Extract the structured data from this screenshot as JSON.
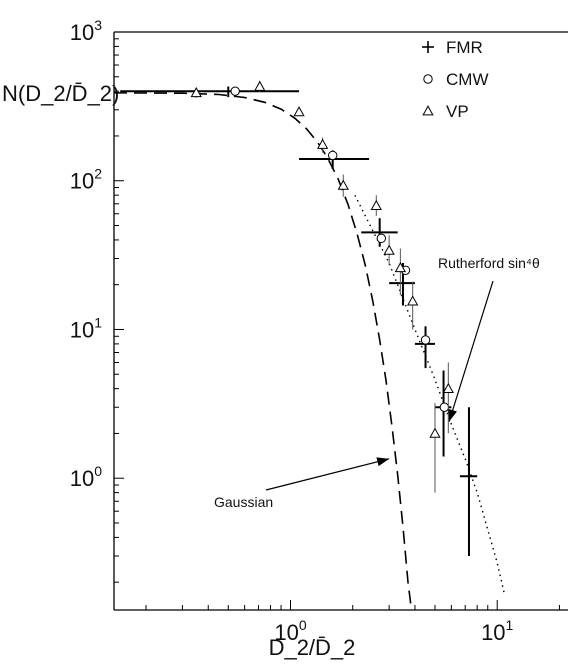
{
  "chart_data": {
    "type": "scatter",
    "title": "",
    "xlabel": "D_2/D̄_2",
    "ylabel": "N(D_2/D̄_2)",
    "xscale": "log",
    "yscale": "log",
    "xlim": [
      0.14,
      22
    ],
    "ylim": [
      0.13,
      1000
    ],
    "x_ticks": [
      {
        "value": 1,
        "base": "10",
        "exp": "0"
      },
      {
        "value": 10,
        "base": "10",
        "exp": "1"
      }
    ],
    "y_ticks": [
      {
        "value": 1,
        "base": "10",
        "exp": "0"
      },
      {
        "value": 10,
        "base": "10",
        "exp": "1"
      },
      {
        "value": 100,
        "base": "10",
        "exp": "2"
      },
      {
        "value": 1000,
        "base": "10",
        "exp": "3"
      }
    ],
    "legend": {
      "position": "top-right",
      "entries": [
        {
          "label": "FMR",
          "marker": "plus"
        },
        {
          "label": "CMW",
          "marker": "circle"
        },
        {
          "label": "VP",
          "marker": "triangle"
        }
      ]
    },
    "series": [
      {
        "name": "FMR",
        "marker": "plus",
        "points": [
          {
            "x": 0.5,
            "y": 400,
            "xerr": [
              0.15,
              1.1
            ],
            "yerr": [
              365,
              430
            ]
          },
          {
            "x": 1.6,
            "y": 140,
            "xerr": [
              1.1,
              2.4
            ],
            "yerr": [
              120,
              160
            ]
          },
          {
            "x": 2.7,
            "y": 45,
            "xerr": [
              2.2,
              3.3
            ],
            "yerr": [
              36,
              56
            ]
          },
          {
            "x": 3.5,
            "y": 20.5,
            "xerr": [
              3.0,
              4.0
            ],
            "yerr": [
              14.5,
              28
            ]
          },
          {
            "x": 4.5,
            "y": 8.0,
            "xerr": [
              4.0,
              5.0
            ],
            "yerr": [
              5.5,
              10.5
            ]
          },
          {
            "x": 5.5,
            "y": 3.0,
            "xerr": [
              5.0,
              6.0
            ],
            "yerr": [
              1.4,
              5.3
            ]
          },
          {
            "x": 7.3,
            "y": 1.03,
            "xerr": [
              6.6,
              8.0
            ],
            "yerr": [
              0.3,
              3.0
            ]
          }
        ]
      },
      {
        "name": "CMW",
        "marker": "circle",
        "points": [
          {
            "x": 0.54,
            "y": 400
          },
          {
            "x": 1.6,
            "y": 148
          },
          {
            "x": 2.75,
            "y": 41
          },
          {
            "x": 3.6,
            "y": 25
          },
          {
            "x": 4.5,
            "y": 8.5
          },
          {
            "x": 5.55,
            "y": 3.0
          }
        ]
      },
      {
        "name": "VP",
        "marker": "triangle",
        "points": [
          {
            "x": 0.35,
            "y": 390,
            "yerr": [
              360,
              420
            ]
          },
          {
            "x": 0.71,
            "y": 430,
            "yerr": [
              395,
              470
            ]
          },
          {
            "x": 1.1,
            "y": 290,
            "yerr": [
              275,
              305
            ]
          },
          {
            "x": 1.43,
            "y": 175,
            "yerr": [
              155,
              195
            ]
          },
          {
            "x": 1.8,
            "y": 93,
            "yerr": [
              78,
              110
            ]
          },
          {
            "x": 2.6,
            "y": 68,
            "yerr": [
              58,
              80
            ]
          },
          {
            "x": 3.0,
            "y": 34,
            "yerr": [
              27,
              43
            ]
          },
          {
            "x": 3.4,
            "y": 26,
            "yerr": [
              17,
              35
            ]
          },
          {
            "x": 3.9,
            "y": 15.5,
            "yerr": [
              10,
              21
            ]
          },
          {
            "x": 5.0,
            "y": 2.0,
            "yerr": [
              0.8,
              3.2
            ]
          },
          {
            "x": 5.8,
            "y": 4.0,
            "yerr": [
              2.0,
              6.0
            ]
          }
        ]
      }
    ],
    "curves": [
      {
        "name": "Gaussian",
        "style": "dashed",
        "points": [
          [
            0.14,
            390
          ],
          [
            0.3,
            388
          ],
          [
            0.45,
            380
          ],
          [
            0.6,
            363
          ],
          [
            0.75,
            337
          ],
          [
            0.9,
            303
          ],
          [
            1.05,
            263
          ],
          [
            1.2,
            222
          ],
          [
            1.35,
            182
          ],
          [
            1.5,
            145
          ],
          [
            1.7,
            103
          ],
          [
            1.9,
            69
          ],
          [
            2.1,
            44
          ],
          [
            2.3,
            27
          ],
          [
            2.5,
            15.5
          ],
          [
            2.7,
            8.5
          ],
          [
            2.9,
            4.5
          ],
          [
            3.1,
            2.2
          ],
          [
            3.3,
            1.05
          ],
          [
            3.5,
            0.47
          ],
          [
            3.7,
            0.2
          ],
          [
            3.85,
            0.13
          ]
        ]
      },
      {
        "name": "Rutherford sin⁴θ",
        "style": "dotted",
        "points": [
          [
            2.05,
            80
          ],
          [
            3.0,
            28
          ],
          [
            4.0,
            10
          ],
          [
            5.0,
            4.6
          ],
          [
            6.0,
            2.3
          ],
          [
            7.0,
            1.35
          ],
          [
            8.0,
            0.8
          ],
          [
            9.0,
            0.45
          ],
          [
            10.0,
            0.27
          ],
          [
            10.8,
            0.17
          ]
        ]
      }
    ],
    "annotations": [
      {
        "text": "Gaussian",
        "arrow_to": {
          "x": 3.0,
          "y": 1.35
        }
      },
      {
        "text": "Rutherford sin⁴θ",
        "arrow_to": {
          "x": 5.85,
          "y": 2.4
        }
      }
    ]
  }
}
